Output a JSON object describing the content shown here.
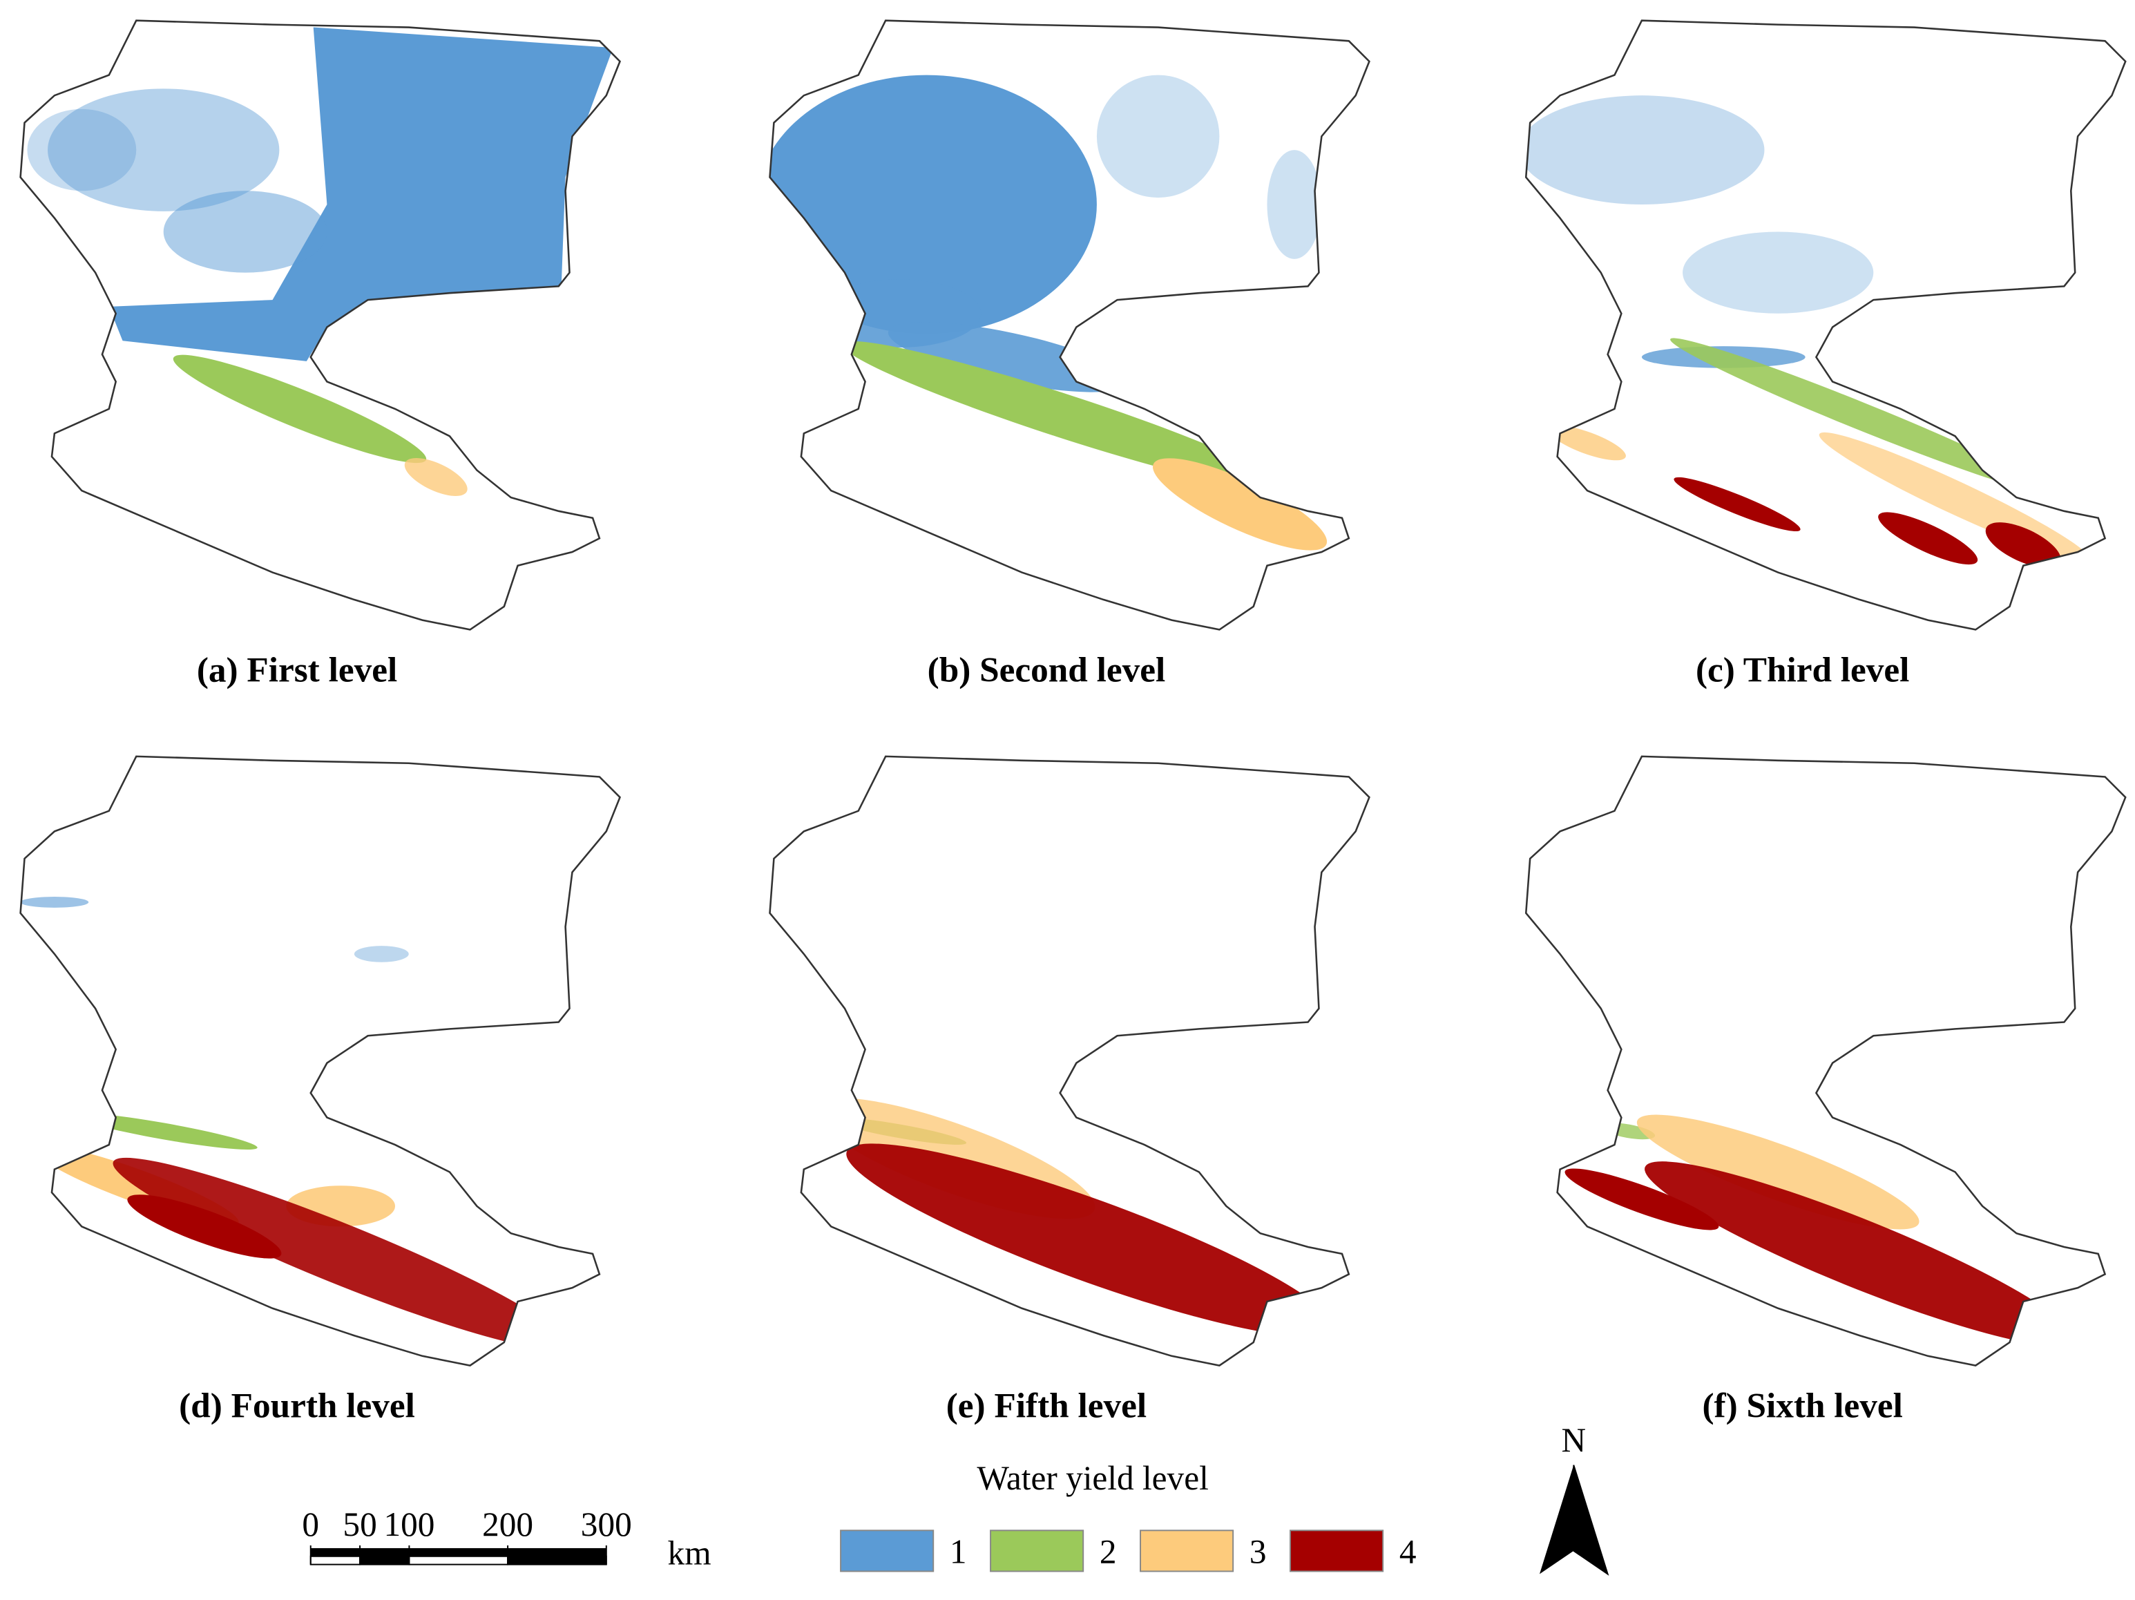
{
  "panels": [
    {
      "caption": "(a) First level"
    },
    {
      "caption": "(b) Second level"
    },
    {
      "caption": "(c) Third level"
    },
    {
      "caption": "(d) Fourth level"
    },
    {
      "caption": "(e) Fifth level"
    },
    {
      "caption": "(f) Sixth level"
    }
  ],
  "legend": {
    "title": "Water yield level",
    "items": [
      {
        "label": "1",
        "color": "#5b9bd5"
      },
      {
        "label": "2",
        "color": "#9bc95a"
      },
      {
        "label": "3",
        "color": "#fdcb7c"
      },
      {
        "label": "4",
        "color": "#a50000"
      }
    ]
  },
  "scale_bar": {
    "ticks": [
      0,
      50,
      100,
      200,
      300
    ],
    "unit": "km"
  },
  "north_arrow": {
    "label": "N"
  }
}
